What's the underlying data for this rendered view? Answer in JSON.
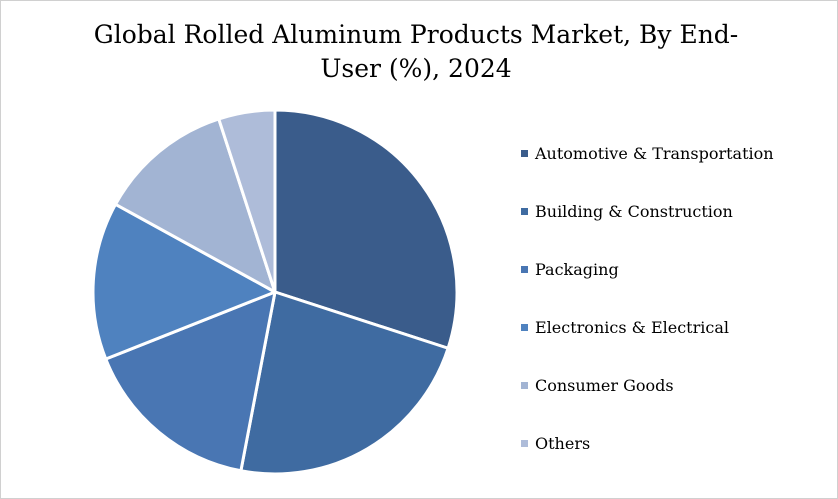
{
  "chart_data": {
    "type": "pie",
    "title": "Global Rolled Aluminum Products Market, By End-User (%), 2024",
    "categories": [
      "Automotive & Transportation",
      "Building & Construction",
      "Packaging",
      "Electronics & Electrical",
      "Consumer Goods",
      "Others"
    ],
    "values": [
      30,
      23,
      16,
      14,
      12,
      5
    ],
    "colors": [
      "#3a5c8b",
      "#3f6ba1",
      "#4976b3",
      "#4f82bf",
      "#a2b4d3",
      "#aebcd9"
    ],
    "legend_position": "right",
    "start_angle_deg": 0,
    "direction": "clockwise"
  }
}
